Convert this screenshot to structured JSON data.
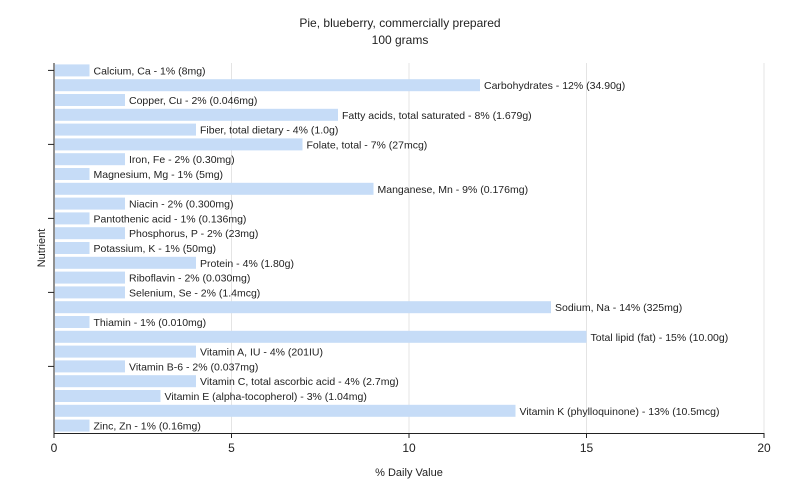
{
  "chart_data": {
    "type": "bar",
    "orientation": "horizontal",
    "title": "Pie, blueberry, commercially prepared",
    "subtitle": "100 grams",
    "xlabel": "% Daily Value",
    "ylabel": "Nutrient",
    "xlim": [
      0,
      20
    ],
    "xticks": [
      0,
      5,
      10,
      15,
      20
    ],
    "grid": true,
    "bar_color": "#c6dcf7",
    "grid_color": "#e4e4e4",
    "axis_color": "#222222",
    "categories": [
      "Calcium, Ca",
      "Carbohydrates",
      "Copper, Cu",
      "Fatty acids, total saturated",
      "Fiber, total dietary",
      "Folate, total",
      "Iron, Fe",
      "Magnesium, Mg",
      "Manganese, Mn",
      "Niacin",
      "Pantothenic acid",
      "Phosphorus, P",
      "Potassium, K",
      "Protein",
      "Riboflavin",
      "Selenium, Se",
      "Sodium, Na",
      "Thiamin",
      "Total lipid (fat)",
      "Vitamin A, IU",
      "Vitamin B-6",
      "Vitamin C, total ascorbic acid",
      "Vitamin E (alpha-tocopherol)",
      "Vitamin K (phylloquinone)",
      "Zinc, Zn"
    ],
    "values": [
      1,
      12,
      2,
      8,
      4,
      7,
      2,
      1,
      9,
      2,
      1,
      2,
      1,
      4,
      2,
      2,
      14,
      1,
      15,
      4,
      2,
      4,
      3,
      13,
      1
    ],
    "labels": [
      "Calcium, Ca - 1% (8mg)",
      "Carbohydrates - 12% (34.90g)",
      "Copper, Cu - 2% (0.046mg)",
      "Fatty acids, total saturated - 8% (1.679g)",
      "Fiber, total dietary - 4% (1.0g)",
      "Folate, total - 7% (27mcg)",
      "Iron, Fe - 2% (0.30mg)",
      "Magnesium, Mg - 1% (5mg)",
      "Manganese, Mn - 9% (0.176mg)",
      "Niacin - 2% (0.300mg)",
      "Pantothenic acid - 1% (0.136mg)",
      "Phosphorus, P - 2% (23mg)",
      "Potassium, K - 1% (50mg)",
      "Protein - 4% (1.80g)",
      "Riboflavin - 2% (0.030mg)",
      "Selenium, Se - 2% (1.4mcg)",
      "Sodium, Na - 14% (325mg)",
      "Thiamin - 1% (0.010mg)",
      "Total lipid (fat) - 15% (10.00g)",
      "Vitamin A, IU - 4% (201IU)",
      "Vitamin B-6 - 2% (0.037mg)",
      "Vitamin C, total ascorbic acid - 4% (2.7mg)",
      "Vitamin E (alpha-tocopherol) - 3% (1.04mg)",
      "Vitamin K (phylloquinone) - 13% (10.5mcg)",
      "Zinc, Zn - 1% (0.16mg)"
    ]
  }
}
